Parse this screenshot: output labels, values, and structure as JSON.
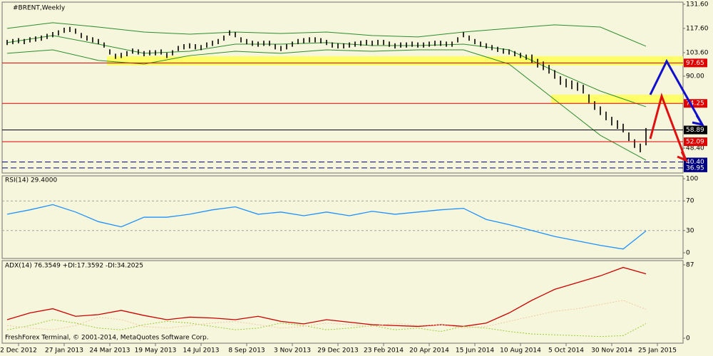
{
  "chart_data": [
    {
      "type": "price-bars",
      "title": "#BRENT,Weekly",
      "bar_color": "#000000",
      "xlim": [
        -0.875,
        118.5
      ],
      "xticks": [
        {
          "value": 2,
          "label": "2 Dec 2012"
        },
        {
          "value": 10,
          "label": "27 Jan 2013"
        },
        {
          "value": 18,
          "label": "24 Mar 2013"
        },
        {
          "value": 26,
          "label": "19 May 2013"
        },
        {
          "value": 34,
          "label": "14 Jul 2013"
        },
        {
          "value": 42,
          "label": "8 Sep 2013"
        },
        {
          "value": 50,
          "label": "3 Nov 2013"
        },
        {
          "value": 58,
          "label": "29 Dec 2013"
        },
        {
          "value": 66,
          "label": "23 Feb 2014"
        },
        {
          "value": 74,
          "label": "20 Apr 2014"
        },
        {
          "value": 82,
          "label": "15 Jun 2014"
        },
        {
          "value": 90,
          "label": "10 Aug 2014"
        },
        {
          "value": 98,
          "label": "5 Oct 2014"
        },
        {
          "value": 106,
          "label": "30 Nov 2014"
        },
        {
          "value": 114,
          "label": "25 Jan 2015"
        }
      ],
      "ylim": [
        34.0,
        132.8
      ],
      "yticks": [
        {
          "value": 131.6,
          "label": "131.60"
        },
        {
          "value": 117.6,
          "label": "117.60"
        },
        {
          "value": 103.6,
          "label": "103.60"
        },
        {
          "value": 90,
          "label": "90.00"
        },
        {
          "value": 48.4,
          "label": "48.40"
        }
      ],
      "high": [
        111,
        111.5,
        112,
        111.5,
        112.5,
        113,
        113.5,
        114.5,
        115.5,
        116.5,
        118,
        118.5,
        117.5,
        115,
        113.5,
        112.5,
        111.5,
        109.5,
        105.5,
        103,
        103.5,
        104.5,
        106,
        105.5,
        104.5,
        105,
        105,
        105.5,
        103.5,
        105,
        107.5,
        108.5,
        109,
        108.5,
        108,
        109.5,
        110.5,
        111.5,
        113.5,
        116.5,
        115.5,
        112.5,
        111.5,
        110.5,
        110,
        110.5,
        110.5,
        108.5,
        107.5,
        108.5,
        110,
        111.5,
        112,
        112.5,
        112.5,
        112,
        111,
        109.5,
        109,
        109,
        109.5,
        110,
        110.5,
        111,
        110.5,
        111,
        111,
        110,
        109,
        109.5,
        109.5,
        110,
        109.5,
        109.5,
        110,
        110.5,
        110.5,
        110,
        110,
        112.5,
        115.5,
        113.5,
        111.5,
        110,
        109,
        108,
        107,
        106,
        105.5,
        104.5,
        103.5,
        102.5,
        102.5,
        100,
        98.5,
        96.5,
        93.5,
        90,
        88.5,
        87.5,
        86.5,
        85,
        79.5,
        75.5,
        72.5,
        69.5,
        66.5,
        64.5,
        62.5,
        57.5,
        53.5,
        51,
        60
      ],
      "low": [
        108,
        108.5,
        109,
        108.5,
        109.5,
        110,
        110.5,
        111.5,
        112.5,
        113.5,
        115,
        115.5,
        114.5,
        112,
        110.5,
        109.5,
        108.5,
        106.5,
        102.5,
        100,
        100.5,
        101.5,
        103,
        102.5,
        101.5,
        102,
        102,
        102.5,
        100.5,
        102,
        104.5,
        105.5,
        106,
        105.5,
        105,
        106.5,
        107.5,
        108.5,
        110.5,
        113.5,
        112.5,
        109.5,
        108.5,
        107.5,
        107,
        107.5,
        107.5,
        105.5,
        104.5,
        105.5,
        107,
        108.5,
        109,
        109.5,
        109.5,
        109,
        108,
        106.5,
        106,
        106,
        106.5,
        107,
        107.5,
        108,
        107.5,
        108,
        108,
        107,
        106,
        106.5,
        106.5,
        107,
        106.5,
        106.5,
        107,
        107.5,
        107.5,
        107,
        107,
        109.5,
        112.5,
        110.5,
        108.5,
        107,
        106,
        105,
        104,
        103,
        102.5,
        101.5,
        100.5,
        99.5,
        97.5,
        95,
        93.5,
        91.5,
        88.5,
        85,
        83.5,
        82.5,
        81.5,
        80,
        74.5,
        70.5,
        67.5,
        64.5,
        61.5,
        59.5,
        57.5,
        52.5,
        48.5,
        46,
        50
      ],
      "bands": {
        "color": "#2e8b2e",
        "x": [
          0,
          8,
          16,
          24,
          32,
          40,
          48,
          56,
          64,
          72,
          80,
          88,
          96,
          104,
          112
        ],
        "upper": [
          117.6,
          120.9,
          118.4,
          115.5,
          114.3,
          115.5,
          114.7,
          115.5,
          113.5,
          112.7,
          115.5,
          117.6,
          119.7,
          118.4,
          107.3
        ],
        "middle": [
          109.4,
          113.5,
          108.5,
          103.2,
          104.4,
          108.5,
          108.5,
          109.4,
          107.7,
          107.7,
          108.5,
          105.2,
          92.9,
          81.4,
          72.3
        ],
        "lower": [
          103.2,
          105.2,
          99.1,
          97.0,
          101.9,
          104.4,
          103.2,
          105.2,
          104.4,
          105.2,
          105.2,
          97.0,
          76.4,
          55.8,
          41.4
        ]
      },
      "levels": [
        {
          "value": 97.65,
          "color": "#e00000"
        },
        {
          "value": 74.25,
          "color": "#e00000"
        },
        {
          "value": 58.89,
          "color": "#000000"
        },
        {
          "value": 52.09,
          "color": "#e00000"
        },
        {
          "value": 40.4,
          "label": "40.40",
          "color": "#000080",
          "dashed": true
        },
        {
          "value": 36.95,
          "color": "#000080",
          "dashed": true
        }
      ]
    },
    {
      "type": "line",
      "title": "RSI(14) 29.4000",
      "x": [
        0,
        4,
        8,
        12,
        16,
        20,
        24,
        28,
        32,
        36,
        40,
        44,
        48,
        52,
        56,
        60,
        64,
        68,
        72,
        76,
        80,
        84,
        88,
        92,
        96,
        100,
        104,
        108,
        112
      ],
      "ylim": [
        -7.7,
        103.85
      ],
      "yticks": [
        0,
        30,
        70,
        100
      ],
      "dashed_ticks": [
        30,
        70
      ],
      "series": [
        {
          "color": "#1e90ff",
          "dash": false,
          "values": [
            52,
            58,
            65,
            55,
            42,
            35,
            48,
            48,
            52,
            58,
            62,
            52,
            55,
            50,
            55,
            50,
            56,
            52,
            55,
            58,
            60,
            45,
            38,
            30,
            22,
            16,
            10,
            5,
            29.4
          ]
        }
      ]
    },
    {
      "type": "line",
      "title": "ADX(14) 76.3549 +DI:17.3592 -DI:34.2025",
      "x": [
        0,
        4,
        8,
        12,
        16,
        20,
        24,
        28,
        32,
        36,
        40,
        44,
        48,
        52,
        56,
        60,
        64,
        68,
        72,
        76,
        80,
        84,
        88,
        92,
        96,
        100,
        104,
        108,
        112
      ],
      "ylim": [
        -5.9,
        92.1
      ],
      "yticks": [
        0,
        87
      ],
      "series": [
        {
          "color": "#cc0000",
          "dash": false,
          "values": [
            22,
            30,
            35,
            26,
            28,
            33,
            27,
            22,
            25,
            24,
            22,
            26,
            20,
            17,
            22,
            19,
            16,
            15,
            14,
            16,
            14,
            18,
            30,
            45,
            58,
            66,
            74,
            84,
            76.3549
          ]
        },
        {
          "color": "#9acd32",
          "dash": true,
          "values": [
            10,
            15,
            22,
            18,
            12,
            10,
            16,
            20,
            18,
            14,
            10,
            12,
            18,
            15,
            10,
            12,
            15,
            10,
            12,
            8,
            14,
            12,
            8,
            5,
            4,
            3,
            2,
            3,
            17.3592
          ]
        },
        {
          "color": "#f0c8a8",
          "dash": true,
          "values": [
            15,
            12,
            10,
            15,
            25,
            22,
            14,
            12,
            15,
            18,
            20,
            16,
            12,
            14,
            18,
            16,
            14,
            18,
            15,
            16,
            12,
            14,
            20,
            26,
            32,
            35,
            40,
            45,
            34.2025
          ]
        }
      ]
    }
  ],
  "footer": "FreshForex Terminal, © 2001-2014, MetaQuotes Software Corp."
}
